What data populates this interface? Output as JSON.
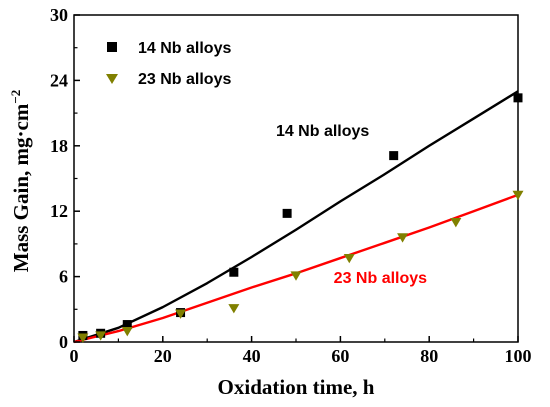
{
  "chart_data": {
    "type": "scatter",
    "xlabel": "Oxidation time, h",
    "ylabel": "Mass Gain, mg·cm",
    "ylabel_sup": "−2",
    "xlim": [
      0,
      100
    ],
    "ylim": [
      0,
      30
    ],
    "xticks": [
      "0",
      "20",
      "40",
      "60",
      "80",
      "100"
    ],
    "yticks": [
      "0",
      "6",
      "12",
      "18",
      "24",
      "30"
    ],
    "legend_position": "top-left",
    "grid": false,
    "series": [
      {
        "name": "14 Nb alloys",
        "marker": "square",
        "color": "#000000",
        "x": [
          2,
          6,
          12,
          24,
          36,
          48,
          72,
          100
        ],
        "y": [
          0.6,
          0.8,
          1.6,
          2.7,
          6.4,
          11.8,
          17.1,
          22.4
        ],
        "fit_color": "#000000",
        "fit": [
          [
            0,
            0
          ],
          [
            10,
            1.3
          ],
          [
            20,
            3.2
          ],
          [
            30,
            5.4
          ],
          [
            40,
            7.8
          ],
          [
            50,
            10.3
          ],
          [
            60,
            12.9
          ],
          [
            70,
            15.4
          ],
          [
            80,
            18.0
          ],
          [
            90,
            20.5
          ],
          [
            100,
            23.0
          ]
        ]
      },
      {
        "name": "23 Nb alloys",
        "marker": "triangle-down",
        "color": "#808000",
        "x": [
          2,
          6,
          12,
          24,
          36,
          50,
          62,
          74,
          86,
          100
        ],
        "y": [
          0.4,
          0.6,
          1.0,
          2.6,
          3.1,
          6.1,
          7.7,
          9.6,
          11.0,
          13.5
        ],
        "fit_color": "#ff0000",
        "fit": [
          [
            0,
            0
          ],
          [
            10,
            1.0
          ],
          [
            20,
            2.2
          ],
          [
            30,
            3.6
          ],
          [
            40,
            5.0
          ],
          [
            50,
            6.3
          ],
          [
            60,
            7.7
          ],
          [
            70,
            9.1
          ],
          [
            80,
            10.5
          ],
          [
            90,
            12.0
          ],
          [
            100,
            13.5
          ]
        ]
      }
    ],
    "annotations": [
      {
        "text": "14 Nb alloys",
        "x": 56,
        "y": 18.9,
        "color": "#000000"
      },
      {
        "text": "23 Nb alloys",
        "x": 69,
        "y": 5.4,
        "color": "#ff0000"
      }
    ]
  }
}
